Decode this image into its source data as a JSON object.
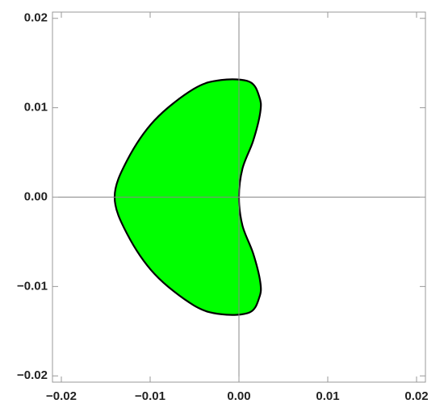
{
  "chart_data": {
    "type": "region",
    "x": [
      -0.002,
      0.0012,
      0.0023,
      0.0024,
      0.0016,
      0.0004,
      0,
      0.0004,
      0.0016,
      0.0024,
      0.0023,
      0.0012,
      -0.002,
      -0.0051,
      -0.0095,
      -0.0126,
      -0.014,
      -0.0126,
      -0.0095,
      -0.0051
    ],
    "y": [
      0.0131,
      0.0129,
      0.0112,
      0.0095,
      0.0063,
      0.0032,
      0,
      -0.0032,
      -0.0063,
      -0.0095,
      -0.0112,
      -0.0129,
      -0.0131,
      -0.0121,
      -0.0086,
      -0.0041,
      0,
      0.0041,
      0.0086,
      0.0121
    ],
    "color": "#00ff00",
    "edge_color": "#000000",
    "xlim": [
      -0.021,
      0.021
    ],
    "ylim": [
      -0.0207,
      0.0207
    ],
    "xticks": [
      {
        "value": -0.02,
        "label": "−0.02"
      },
      {
        "value": -0.01,
        "label": "−0.01"
      },
      {
        "value": 0,
        "label": "0.00"
      },
      0.01,
      0.02
    ],
    "yticks": [
      {
        "value": -0.02,
        "label": "−0.02"
      },
      {
        "value": -0.01,
        "label": "−0.01"
      },
      {
        "value": 0,
        "label": "0.00"
      },
      0.01,
      0.02
    ],
    "axes_lines": true
  }
}
